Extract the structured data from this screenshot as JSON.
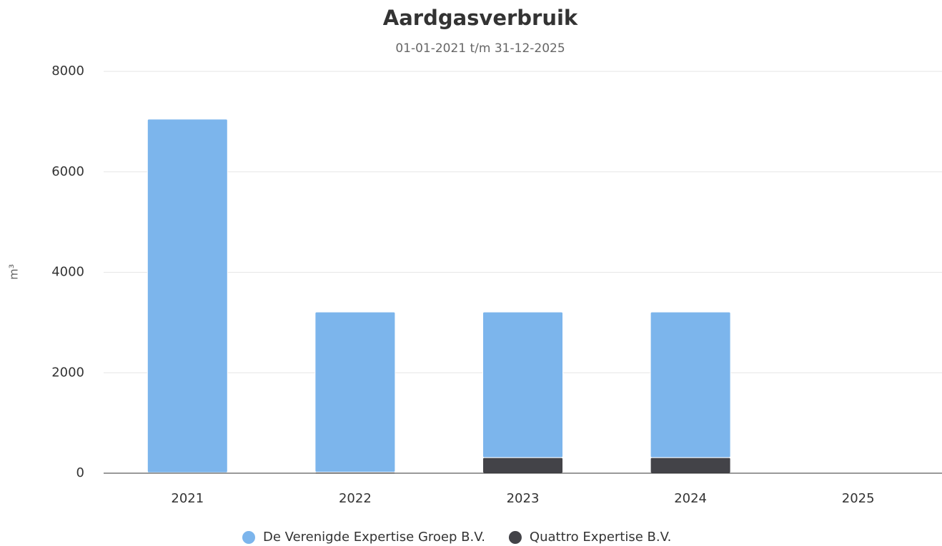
{
  "chart_data": {
    "type": "stacked_bar",
    "title": "Aardgasverbruik",
    "subtitle": "01-01-2021 t/m 31-12-2025",
    "y_label": "m³",
    "categories": [
      "2021",
      "2022",
      "2023",
      "2024",
      "2025"
    ],
    "series": [
      {
        "name": "De Verenigde Expertise Groep B.V.",
        "color": "#7cb5ec",
        "values": [
          7040,
          3190,
          2900,
          2900,
          null
        ]
      },
      {
        "name": "Quattro Expertise B.V.",
        "color": "#434348",
        "values": [
          10,
          20,
          310,
          310,
          null
        ]
      }
    ],
    "ylim": [
      0,
      8000
    ],
    "yticks": [
      0,
      2000,
      4000,
      6000,
      8000
    ],
    "grid": true
  }
}
